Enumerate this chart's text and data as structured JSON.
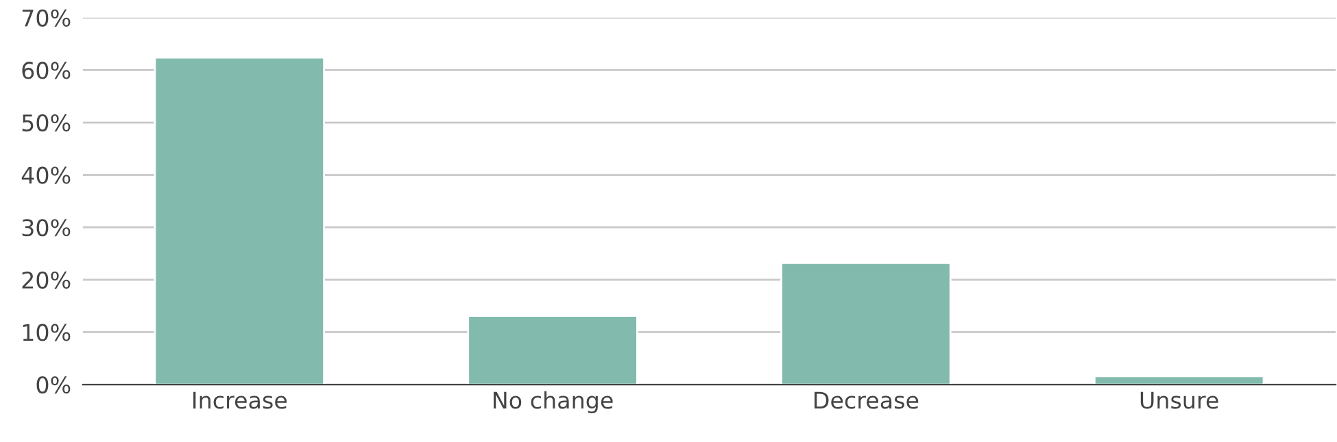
{
  "chart_data": {
    "type": "bar",
    "categories": [
      "Increase",
      "No change",
      "Decrease",
      "Unsure"
    ],
    "values": [
      62.4,
      13.1,
      23.2,
      1.6
    ],
    "color": "#82bbad",
    "ylim": [
      0,
      70
    ],
    "yticks": [
      {
        "value": 0,
        "label": "0%"
      },
      {
        "value": 10,
        "label": "10%"
      },
      {
        "value": 20,
        "label": "20%"
      },
      {
        "value": 30,
        "label": "30%"
      },
      {
        "value": 40,
        "label": "40%"
      },
      {
        "value": 50,
        "label": "50%"
      },
      {
        "value": 60,
        "label": "60%"
      },
      {
        "value": 70,
        "label": "70%"
      }
    ],
    "grid": "y"
  }
}
